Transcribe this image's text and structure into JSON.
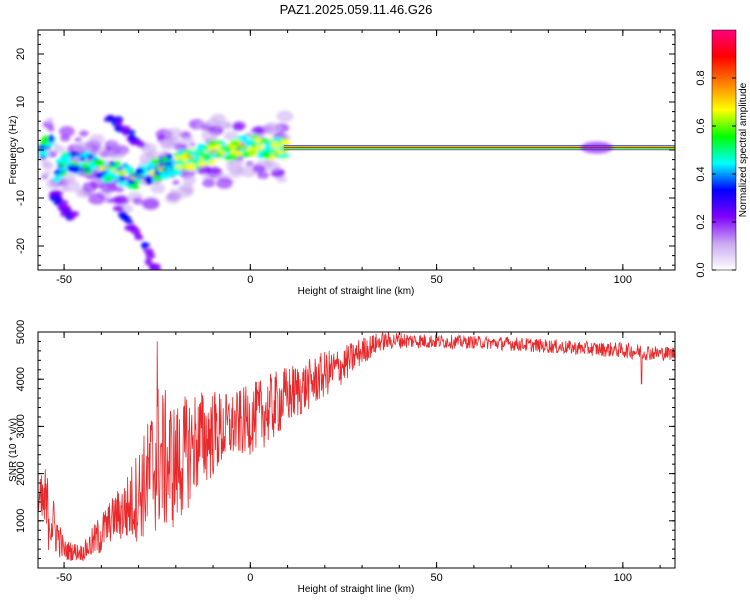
{
  "title": "PAZ1.2025.059.11.46.G26",
  "chart_data": [
    {
      "type": "heatmap",
      "xlabel": "Height of straight line (km)",
      "ylabel": "Frequency (Hz)",
      "xlim": [
        -57,
        114
      ],
      "ylim": [
        -25,
        25
      ],
      "xticks": [
        -50,
        0,
        50,
        100
      ],
      "yticks": [
        -20,
        -10,
        0,
        10,
        20
      ],
      "colorbar": {
        "label": "Normalized spectral amplitude",
        "range": [
          0,
          1
        ],
        "ticks": [
          "0.0",
          "0.2",
          "0.4",
          "0.6",
          "0.8"
        ],
        "colors": [
          "#ffffff",
          "#c9a8f0",
          "#8000ff",
          "#0000ff",
          "#00ffff",
          "#00ff00",
          "#ffff00",
          "#ff8000",
          "#ff0000",
          "#ff0080"
        ]
      },
      "ridge": [
        {
          "x": -53,
          "y": -5
        },
        {
          "x": -50,
          "y": -3
        },
        {
          "x": -45,
          "y": -2
        },
        {
          "x": -40,
          "y": -4
        },
        {
          "x": -35,
          "y": -5
        },
        {
          "x": -30,
          "y": -6
        },
        {
          "x": -25,
          "y": -4
        },
        {
          "x": -20,
          "y": -3
        },
        {
          "x": -15,
          "y": -1.5
        },
        {
          "x": -10,
          "y": -0.5
        },
        {
          "x": -5,
          "y": 0
        },
        {
          "x": 0,
          "y": 1
        },
        {
          "x": 5,
          "y": 0.5
        },
        {
          "x": 10,
          "y": 0.5
        },
        {
          "x": 114,
          "y": 0.5
        }
      ],
      "branches": [
        {
          "x": [
            -38,
            -30
          ],
          "y": [
            7,
            1
          ]
        },
        {
          "x": [
            -35,
            -25
          ],
          "y": [
            -12,
            -25
          ]
        },
        {
          "x": [
            -53,
            -48
          ],
          "y": [
            -9,
            -14
          ]
        }
      ]
    },
    {
      "type": "line",
      "xlabel": "Height of straight line (km)",
      "ylabel": "SNR (10 * v/v)",
      "xlim": [
        -57,
        114
      ],
      "ylim": [
        0,
        5000
      ],
      "xticks": [
        -50,
        0,
        50,
        100
      ],
      "yticks": [
        1000,
        2000,
        3000,
        4000,
        5000
      ],
      "color": "#e8282a",
      "envelope": [
        {
          "x": -57,
          "lo": 900,
          "hi": 1800
        },
        {
          "x": -55,
          "lo": 400,
          "hi": 2200
        },
        {
          "x": -50,
          "lo": 150,
          "hi": 600
        },
        {
          "x": -45,
          "lo": 150,
          "hi": 500
        },
        {
          "x": -40,
          "lo": 250,
          "hi": 1200
        },
        {
          "x": -37,
          "lo": 600,
          "hi": 1500
        },
        {
          "x": -33,
          "lo": 500,
          "hi": 2000
        },
        {
          "x": -28,
          "lo": 600,
          "hi": 3000
        },
        {
          "x": -25,
          "lo": 700,
          "hi": 4000
        },
        {
          "x": -20,
          "lo": 800,
          "hi": 3500
        },
        {
          "x": -15,
          "lo": 1500,
          "hi": 3800
        },
        {
          "x": -10,
          "lo": 1900,
          "hi": 3800
        },
        {
          "x": -5,
          "lo": 2300,
          "hi": 3700
        },
        {
          "x": 0,
          "lo": 2400,
          "hi": 3900
        },
        {
          "x": 5,
          "lo": 2600,
          "hi": 4100
        },
        {
          "x": 10,
          "lo": 3000,
          "hi": 4300
        },
        {
          "x": 15,
          "lo": 3300,
          "hi": 4400
        },
        {
          "x": 20,
          "lo": 3600,
          "hi": 4600
        },
        {
          "x": 25,
          "lo": 3900,
          "hi": 4700
        },
        {
          "x": 30,
          "lo": 4300,
          "hi": 4900
        },
        {
          "x": 35,
          "lo": 4600,
          "hi": 5000
        },
        {
          "x": 40,
          "lo": 4650,
          "hi": 5000
        },
        {
          "x": 50,
          "lo": 4650,
          "hi": 4950
        },
        {
          "x": 60,
          "lo": 4650,
          "hi": 4920
        },
        {
          "x": 70,
          "lo": 4600,
          "hi": 4900
        },
        {
          "x": 80,
          "lo": 4550,
          "hi": 4850
        },
        {
          "x": 90,
          "lo": 4500,
          "hi": 4800
        },
        {
          "x": 100,
          "lo": 4450,
          "hi": 4780
        },
        {
          "x": 105,
          "lo": 4400,
          "hi": 4750
        },
        {
          "x": 110,
          "lo": 4400,
          "hi": 4700
        },
        {
          "x": 114,
          "lo": 4400,
          "hi": 4700
        }
      ],
      "spikes": [
        {
          "x": -25,
          "y": 4800
        },
        {
          "x": 105,
          "y": 3900
        }
      ]
    }
  ]
}
